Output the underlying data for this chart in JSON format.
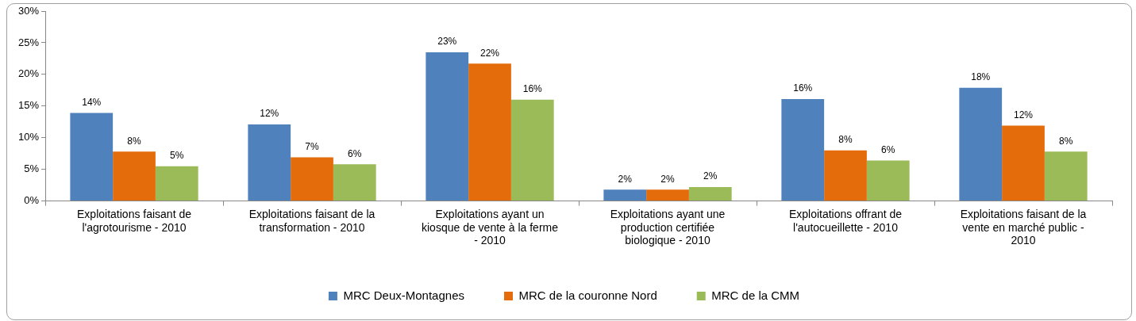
{
  "chart_data": {
    "type": "bar",
    "categories": [
      "Exploitations faisant de l'agrotourisme - 2010",
      "Exploitations faisant de la transformation - 2010",
      "Exploitations ayant un kiosque de vente à la ferme - 2010",
      "Exploitations ayant une production certifiée biologique - 2010",
      "Exploitations offrant de l'autocueillette - 2010",
      "Exploitations faisant de la vente en marché public - 2010"
    ],
    "series": [
      {
        "name": "MRC Deux-Montagnes",
        "color": "#4f81bd",
        "values": [
          13.9,
          12.1,
          23.5,
          1.8,
          16.1,
          17.9
        ],
        "value_labels": [
          "14%",
          "12%",
          "23%",
          "2%",
          "16%",
          "18%"
        ]
      },
      {
        "name": "MRC de la couronne Nord",
        "color": "#e46c0a",
        "values": [
          7.8,
          6.9,
          21.7,
          1.8,
          8.0,
          11.9
        ],
        "value_labels": [
          "8%",
          "7%",
          "22%",
          "2%",
          "8%",
          "12%"
        ]
      },
      {
        "name": "MRC de la CMM",
        "color": "#9bbb59",
        "values": [
          5.5,
          5.8,
          16.0,
          2.2,
          6.4,
          7.8
        ],
        "value_labels": [
          "5%",
          "6%",
          "16%",
          "2%",
          "6%",
          "8%"
        ]
      }
    ],
    "ylim": [
      0,
      30
    ],
    "yticks": [
      {
        "value": 0,
        "label": "0%"
      },
      {
        "value": 5,
        "label": "5%"
      },
      {
        "value": 10,
        "label": "10%"
      },
      {
        "value": 15,
        "label": "15%"
      },
      {
        "value": 20,
        "label": "20%"
      },
      {
        "value": 25,
        "label": "25%"
      },
      {
        "value": 30,
        "label": "30%"
      }
    ],
    "grid": false,
    "legend": "bottom"
  }
}
